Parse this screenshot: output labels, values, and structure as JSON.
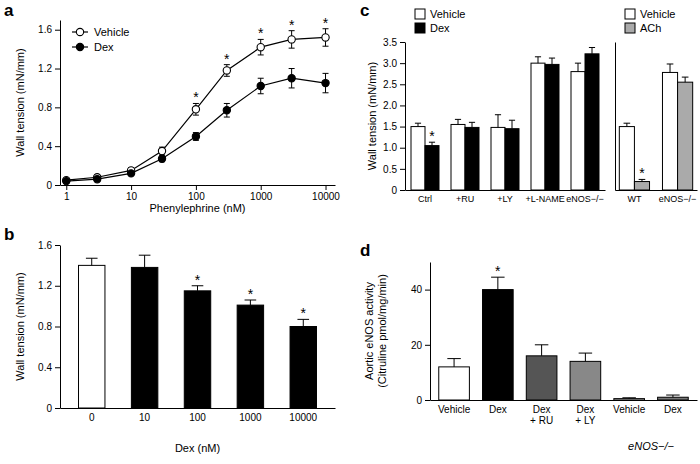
{
  "chart_data": [
    {
      "type": "line",
      "title": "a",
      "x": [
        1,
        3,
        10,
        30,
        100,
        300,
        1000,
        3000,
        10000
      ],
      "xlabel": "Phenylephrine (nM)",
      "ylabel": "Wall tension (mN/mm)",
      "log": "x",
      "xlim": [
        0.8,
        14000
      ],
      "xticks": [
        1,
        10,
        100,
        1000,
        10000
      ],
      "ylim": [
        0,
        1.7
      ],
      "yticks": [
        0,
        0.4,
        0.8,
        1.2,
        1.6
      ],
      "legend": "upper left",
      "series": [
        {
          "name": "Vehicle",
          "color": "#ffffff",
          "marker": "circle",
          "values": [
            0.05,
            0.08,
            0.15,
            0.35,
            0.78,
            1.18,
            1.42,
            1.5,
            1.52
          ],
          "errors": [
            0.02,
            0.02,
            0.03,
            0.04,
            0.06,
            0.06,
            0.08,
            0.09,
            0.09
          ]
        },
        {
          "name": "Dex",
          "color": "#000000",
          "marker": "circle",
          "values": [
            0.04,
            0.06,
            0.12,
            0.27,
            0.5,
            0.77,
            1.02,
            1.1,
            1.05
          ],
          "errors": [
            0.02,
            0.02,
            0.02,
            0.03,
            0.04,
            0.07,
            0.08,
            0.1,
            0.1
          ]
        }
      ],
      "significance": [
        null,
        null,
        null,
        null,
        "*",
        "*",
        "*",
        "*",
        "*"
      ]
    },
    {
      "type": "bar",
      "title": "b",
      "categories": [
        "0",
        "10",
        "100",
        "1000",
        "10000"
      ],
      "values": [
        1.4,
        1.38,
        1.15,
        1.01,
        0.8
      ],
      "errors": [
        0.07,
        0.12,
        0.05,
        0.05,
        0.07
      ],
      "colors": [
        "#ffffff",
        "#000000",
        "#000000",
        "#000000",
        "#000000"
      ],
      "xlabel": "Dex (nM)",
      "ylabel": "Wall tension (mN/mm)",
      "ylim": [
        0,
        1.6
      ],
      "yticks": [
        0,
        0.4,
        0.8,
        1.2,
        1.6
      ],
      "significance": [
        null,
        null,
        "*",
        "*",
        "*"
      ]
    },
    {
      "type": "bar",
      "title": "c",
      "categories": [
        "Ctrl",
        "+RU",
        "+LY",
        "+L-NAME",
        "eNOS−/−"
      ],
      "ylabel": "Wall tension (mN/mm)",
      "ylim": [
        0,
        3.5
      ],
      "yticks": [
        0,
        0.5,
        {
          "value": 1,
          "label": "1.0"
        },
        1.5,
        {
          "value": 2,
          "label": "2.0"
        },
        2.5,
        {
          "value": 3,
          "label": "3.0"
        },
        3.5
      ],
      "legend": "upper left",
      "series": [
        {
          "name": "Vehicle",
          "color": "#ffffff",
          "values": [
            1.5,
            1.55,
            1.48,
            3.0,
            2.8
          ],
          "errors": [
            0.08,
            0.12,
            0.3,
            0.15,
            0.2
          ]
        },
        {
          "name": "Dex",
          "color": "#000000",
          "values": [
            1.05,
            1.48,
            1.45,
            2.97,
            3.22
          ],
          "errors": [
            0.08,
            0.12,
            0.2,
            0.15,
            0.15
          ],
          "significance": [
            "*",
            null,
            null,
            null,
            null
          ]
        }
      ]
    },
    {
      "type": "bar",
      "categories": [
        "WT",
        "eNOS−/−"
      ],
      "ylim": [
        0,
        3.5
      ],
      "tick_labels": "x",
      "legend": "upper left",
      "series": [
        {
          "name": "Vehicle",
          "color": "#ffffff",
          "values": [
            1.5,
            2.78
          ],
          "errors": [
            0.08,
            0.2
          ]
        },
        {
          "name": "ACh",
          "color": "#aaaaaa",
          "values": [
            0.2,
            2.55
          ],
          "errors": [
            0.05,
            0.12
          ],
          "significance": [
            "*",
            null
          ]
        }
      ]
    },
    {
      "type": "bar",
      "title": "d",
      "categories": [
        "Vehicle",
        "Dex",
        "Dex + RU",
        "Dex + LY",
        "Vehicle",
        "Dex"
      ],
      "category_groups": [
        null,
        null,
        null,
        null,
        "eNOS−/−",
        "eNOS−/−"
      ],
      "values": [
        12,
        40,
        16,
        14,
        0.5,
        1
      ],
      "errors": [
        3,
        4.5,
        4,
        3,
        0.3,
        0.8
      ],
      "colors": [
        "#ffffff",
        "#000000",
        "#555555",
        "#888888",
        "#ffffff",
        "#777777"
      ],
      "ylabel": [
        "Aortic eNOS activity",
        "(Citruline pmol/mg/min)"
      ],
      "ylim": [
        0,
        50
      ],
      "yticks": [
        0,
        20,
        40
      ],
      "significance": [
        null,
        "*",
        null,
        null,
        null,
        null
      ]
    }
  ]
}
